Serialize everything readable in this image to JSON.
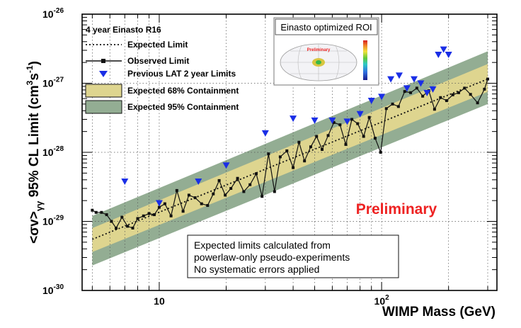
{
  "chart_data": {
    "type": "line",
    "title": "",
    "xlabel": "WIMP Mass (GeV)",
    "ylabel": "<σv>",
    "ylabel_sub": "γγ",
    "ylabel_rest": " 95% CL Limit (cm",
    "ylabel_sup": "3",
    "ylabel_unit2": "s",
    "ylabel_sup2": "-1",
    "ylabel_end": ")",
    "xscale": "log",
    "yscale": "log",
    "xlim": [
      4.5,
      330
    ],
    "ylim": [
      1e-30,
      1e-26
    ],
    "grid": true,
    "x_ticks": [
      {
        "value": 10,
        "label": "10"
      },
      {
        "value": 100,
        "label": "10",
        "sup": "2"
      }
    ],
    "y_ticks": [
      {
        "value": 1e-30,
        "label": "10",
        "sup": "-30"
      },
      {
        "value": 1e-29,
        "label": "10",
        "sup": "-29"
      },
      {
        "value": 1e-28,
        "label": "10",
        "sup": "-28"
      },
      {
        "value": 1e-27,
        "label": "10",
        "sup": "-27"
      },
      {
        "value": 1e-26,
        "label": "10",
        "sup": "-26"
      }
    ],
    "legend": {
      "placement": "top-left",
      "header": "4 year Einasto R16",
      "entries": [
        {
          "label": "Expected Limit",
          "kind": "dotted-line"
        },
        {
          "label": "Observed Limit",
          "kind": "line-marker"
        },
        {
          "label": "Previous LAT 2 year Limits",
          "kind": "triangle"
        },
        {
          "label": "Expected 68% Containment",
          "kind": "box",
          "color": "#ded58f"
        },
        {
          "label": "Expected 95% Containment",
          "kind": "box",
          "color": "#93ad93"
        }
      ]
    },
    "bands": {
      "x": [
        5,
        300
      ],
      "band95_low": [
        2.3e-30,
        5e-28
      ],
      "band95_high": [
        1.2e-29,
        2.9e-27
      ],
      "band68_low": [
        3.6e-30,
        7.5e-28
      ],
      "band68_high": [
        8e-30,
        1.9e-27
      ]
    },
    "series": [
      {
        "name": "Expected Limit",
        "x": [
          5,
          300
        ],
        "values": [
          5.5e-30,
          1.15e-27
        ]
      },
      {
        "name": "Observed Limit",
        "x": [
          5.0,
          5.2,
          5.5,
          5.8,
          6.1,
          6.4,
          6.8,
          7.2,
          7.6,
          8.0,
          8.5,
          9.0,
          9.5,
          10.0,
          10.6,
          11.3,
          12.0,
          12.8,
          13.6,
          14.5,
          15.5,
          16.5,
          17.5,
          18.6,
          19.8,
          21,
          22.5,
          24,
          25.6,
          27.3,
          29,
          31,
          33,
          35,
          37.5,
          40,
          42.5,
          45,
          48,
          51,
          54,
          57.5,
          61,
          65,
          69,
          73.5,
          78,
          83,
          88,
          93.5,
          99,
          105,
          112,
          119,
          127,
          135,
          144,
          153,
          163,
          173,
          184,
          196,
          209,
          222,
          236,
          251,
          270,
          290,
          300
        ],
        "values": [
          1.45e-29,
          1.35e-29,
          1.35e-29,
          1.25e-29,
          1e-29,
          8e-30,
          1.15e-29,
          8.5e-30,
          8e-30,
          1.1e-29,
          1.2e-29,
          1.3e-29,
          1.25e-29,
          1.6e-29,
          1.8e-29,
          1.2e-29,
          2.8e-29,
          1.4e-29,
          2.4e-29,
          2.2e-29,
          1.8e-29,
          1.7e-29,
          2.5e-29,
          3.9e-29,
          2.4e-29,
          3e-29,
          4.2e-29,
          2.7e-29,
          3.4e-29,
          4.9e-29,
          2.3e-29,
          9.5e-29,
          2.7e-29,
          8.6e-29,
          1.05e-28,
          6e-29,
          1.4e-28,
          7.5e-29,
          1.2e-28,
          1.7e-28,
          1.1e-28,
          1.75e-28,
          2.7e-28,
          2.5e-28,
          1.3e-28,
          3e-28,
          2.6e-28,
          1.7e-28,
          3.2e-28,
          1.6e-28,
          1e-28,
          4.3e-28,
          5e-28,
          4.6e-28,
          7.6e-28,
          7.3e-28,
          8.5e-28,
          6.5e-28,
          7.8e-28,
          4.2e-28,
          6.2e-28,
          5.6e-28,
          6.8e-28,
          7.3e-28,
          8.5e-28,
          6.9e-28,
          5.2e-28,
          8.2e-28,
          1.15e-27
        ]
      },
      {
        "name": "Previous LAT 2 year Limits",
        "x": [
          7,
          10,
          15,
          20,
          30,
          40,
          50,
          60,
          70,
          80,
          90,
          100,
          110,
          120,
          130,
          140,
          150,
          160,
          170,
          180,
          190,
          200
        ],
        "values": [
          3.8e-29,
          1.85e-29,
          3.8e-29,
          6.5e-29,
          1.9e-28,
          3.1e-28,
          2.9e-28,
          2.9e-28,
          2.8e-28,
          3.6e-28,
          5.6e-28,
          6.4e-28,
          1.15e-27,
          1.3e-27,
          8.5e-28,
          1.15e-27,
          1e-27,
          7.3e-28,
          8.2e-28,
          2.6e-27,
          3.1e-27,
          2.6e-27
        ]
      }
    ],
    "annotations": {
      "preliminary": "Preliminary",
      "note_lines": [
        "Expected limits calculated from",
        "powerlaw-only pseudo-experiments",
        "No systematic errors applied"
      ],
      "inset_title": "Einasto optimized ROI",
      "inset_preliminary": "Preliminary"
    },
    "colors": {
      "band68": "#ded58f",
      "band95": "#93ad93",
      "triangles": "#1a2ee6",
      "preliminary": "#ee2222",
      "grid": "#555555"
    }
  }
}
